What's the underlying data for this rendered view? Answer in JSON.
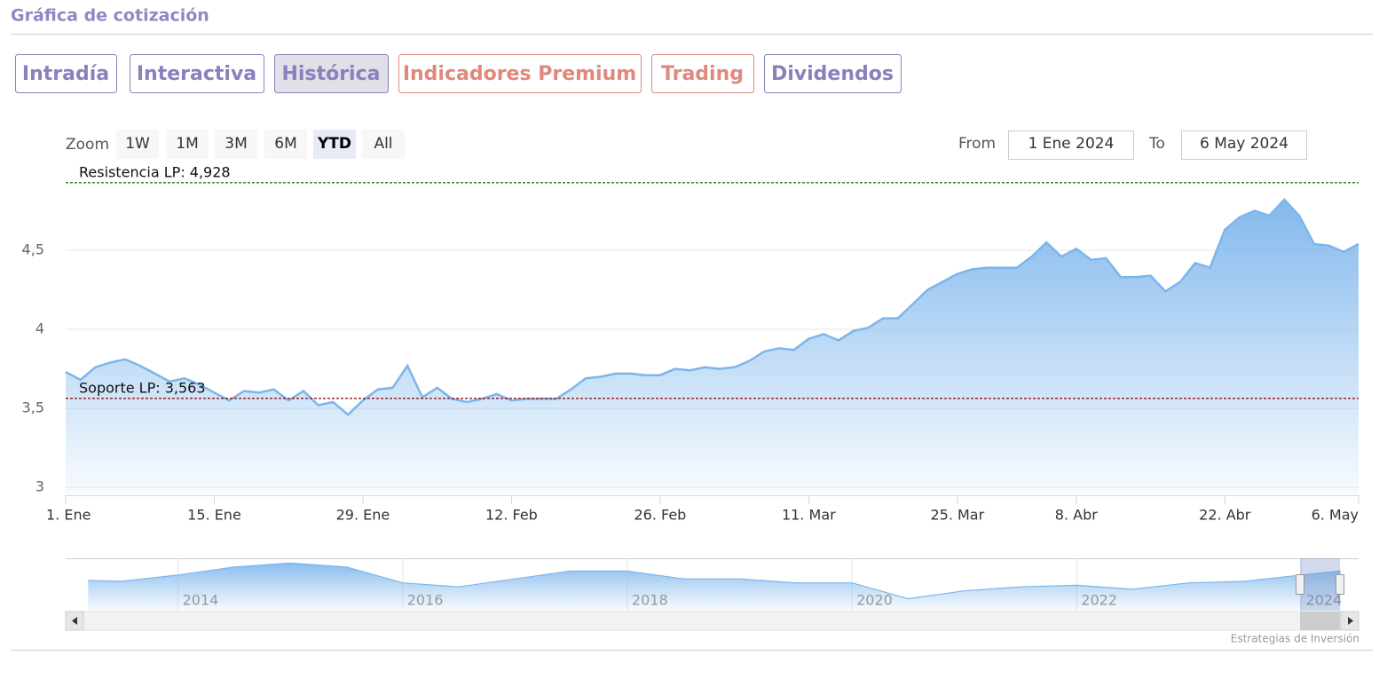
{
  "header": {
    "title": "Gráfica de cotización"
  },
  "tabs": [
    {
      "label": "Intradía",
      "color": "#8a80bd",
      "active": false
    },
    {
      "label": "Interactiva",
      "color": "#8a80bd",
      "active": false
    },
    {
      "label": "Histórica",
      "color": "#8a80bd",
      "active": true
    },
    {
      "label": "Indicadores Premium",
      "color": "#e0887e",
      "active": false
    },
    {
      "label": "Trading",
      "color": "#e0887e",
      "active": false
    },
    {
      "label": "Dividendos",
      "color": "#8a80bd",
      "active": false
    }
  ],
  "zoom": {
    "label": "Zoom",
    "buttons": [
      "1W",
      "1M",
      "3M",
      "6M",
      "YTD",
      "All"
    ],
    "selected": "YTD"
  },
  "range": {
    "from_label": "From",
    "from": "1 Ene 2024",
    "to_label": "To",
    "to": "6 May 2024"
  },
  "credit": "Estrategias de Inversión",
  "chart_data": [
    {
      "type": "area",
      "color": "#7cb5ec",
      "x": [
        "1. Ene",
        "2. Ene",
        "3. Ene",
        "4. Ene",
        "5. Ene",
        "8. Ene",
        "9. Ene",
        "10. Ene",
        "11. Ene",
        "12. Ene",
        "15. Ene",
        "16. Ene",
        "17. Ene",
        "18. Ene",
        "19. Ene",
        "22. Ene",
        "23. Ene",
        "24. Ene",
        "25. Ene",
        "26. Ene",
        "29. Ene",
        "30. Ene",
        "31. Ene",
        "1. Feb",
        "2. Feb",
        "5. Feb",
        "6. Feb",
        "7. Feb",
        "8. Feb",
        "9. Feb",
        "12. Feb",
        "13. Feb",
        "14. Feb",
        "15. Feb",
        "16. Feb",
        "19. Feb",
        "20. Feb",
        "21. Feb",
        "22. Feb",
        "23. Feb",
        "26. Feb",
        "27. Feb",
        "28. Feb",
        "29. Feb",
        "1. Mar",
        "4. Mar",
        "5. Mar",
        "6. Mar",
        "7. Mar",
        "8. Mar",
        "11. Mar",
        "12. Mar",
        "13. Mar",
        "14. Mar",
        "15. Mar",
        "18. Mar",
        "19. Mar",
        "20. Mar",
        "21. Mar",
        "22. Mar",
        "25. Mar",
        "26. Mar",
        "27. Mar",
        "28. Mar",
        "2. Abr",
        "3. Abr",
        "4. Abr",
        "5. Abr",
        "8. Abr",
        "9. Abr",
        "10. Abr",
        "11. Abr",
        "12. Abr",
        "15. Abr",
        "16. Abr",
        "17. Abr",
        "18. Abr",
        "19. Abr",
        "22. Abr",
        "23. Abr",
        "24. Abr",
        "25. Abr",
        "26. Abr",
        "29. Abr",
        "30. Abr",
        "2. May",
        "3. May",
        "6. May"
      ],
      "values": [
        3.73,
        3.68,
        3.76,
        3.79,
        3.81,
        3.77,
        3.72,
        3.67,
        3.69,
        3.65,
        3.6,
        3.55,
        3.61,
        3.6,
        3.62,
        3.55,
        3.61,
        3.52,
        3.54,
        3.46,
        3.55,
        3.62,
        3.63,
        3.77,
        3.57,
        3.63,
        3.56,
        3.54,
        3.56,
        3.59,
        3.55,
        3.56,
        3.56,
        3.56,
        3.62,
        3.69,
        3.7,
        3.72,
        3.72,
        3.71,
        3.71,
        3.75,
        3.74,
        3.76,
        3.75,
        3.76,
        3.8,
        3.86,
        3.88,
        3.87,
        3.94,
        3.97,
        3.93,
        3.99,
        4.01,
        4.07,
        4.07,
        4.16,
        4.25,
        4.3,
        4.35,
        4.38,
        4.39,
        4.39,
        4.39,
        4.46,
        4.55,
        4.46,
        4.51,
        4.44,
        4.45,
        4.33,
        4.33,
        4.34,
        4.24,
        4.3,
        4.42,
        4.39,
        4.63,
        4.71,
        4.75,
        4.72,
        4.82,
        4.72,
        4.54,
        4.53,
        4.49,
        4.54
      ],
      "xticks": [
        "1. Ene",
        "15. Ene",
        "29. Ene",
        "12. Feb",
        "26. Feb",
        "11. Mar",
        "25. Mar",
        "8. Abr",
        "22. Abr",
        "6. May"
      ],
      "ylim": [
        2.95,
        5.0
      ],
      "yticks": [
        {
          "value": 3,
          "label": "3"
        },
        {
          "value": 3.5,
          "label": "3,5"
        },
        {
          "value": 4,
          "label": "4"
        },
        {
          "value": 4.5,
          "label": "4,5"
        }
      ],
      "grid": true,
      "plot_lines": [
        {
          "label": "Resistencia LP: 4,928",
          "value": 4.928,
          "color": "#1f7a1f"
        },
        {
          "label": "Soporte LP: 3,563",
          "value": 3.563,
          "color": "#8b0000"
        }
      ]
    },
    {
      "type": "area",
      "color": "#7cb5ec",
      "x": [
        2013.2,
        2013.5,
        2014,
        2014.5,
        2015,
        2015.5,
        2016,
        2016.5,
        2017,
        2017.5,
        2018,
        2018.5,
        2019,
        2019.5,
        2020,
        2020.5,
        2021,
        2021.5,
        2022,
        2022.5,
        2023,
        2023.5,
        2024,
        2024.35
      ],
      "values": [
        3.9,
        3.85,
        4.25,
        4.75,
        5.0,
        4.75,
        3.75,
        3.5,
        4.0,
        4.5,
        4.5,
        4.0,
        4.0,
        3.75,
        3.75,
        2.75,
        3.25,
        3.5,
        3.6,
        3.35,
        3.75,
        3.85,
        4.25,
        4.5
      ],
      "xlim": [
        2013.0,
        2024.51
      ],
      "ylim": [
        2.0,
        5.3
      ],
      "xticks": [
        2014,
        2016,
        2018,
        2020,
        2022,
        2024
      ]
    }
  ]
}
